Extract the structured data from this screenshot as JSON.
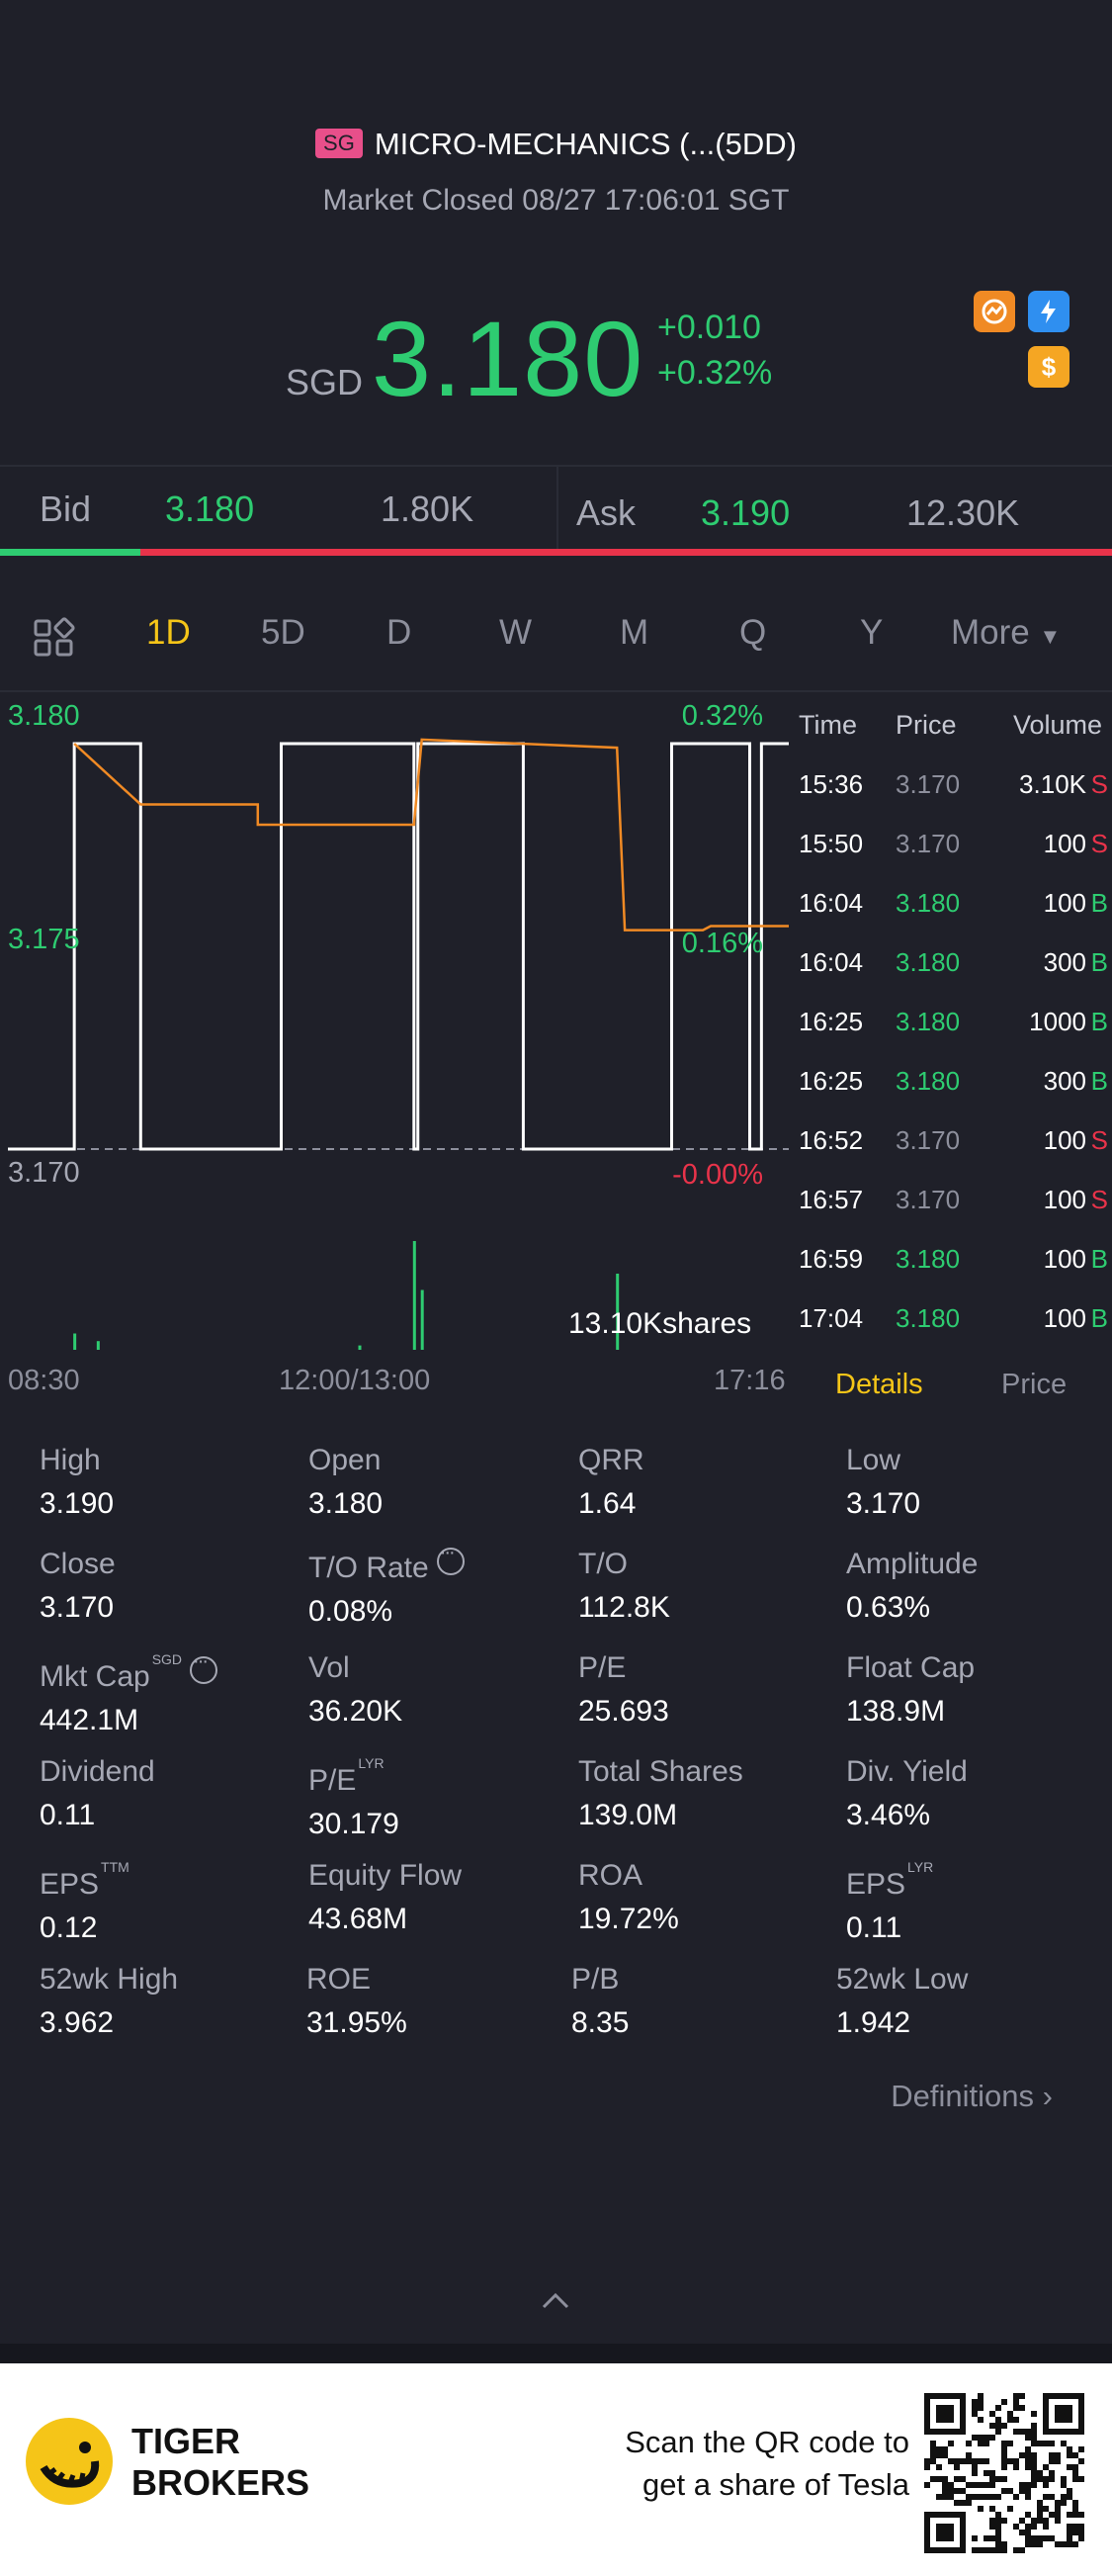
{
  "header": {
    "market_badge": "SG",
    "title": "MICRO-MECHANICS (...(5DD)",
    "status": "Market Closed 08/27 17:06:01 SGT",
    "currency": "SGD",
    "price": "3.180",
    "change": "+0.010",
    "change_pct": "+0.32%",
    "badge_lightning": "1",
    "badge_dollar": "$"
  },
  "quote": {
    "bid_label": "Bid",
    "bid_price": "3.180",
    "bid_qty": "1.80K",
    "ask_label": "Ask",
    "ask_price": "3.190",
    "ask_qty": "12.30K"
  },
  "tabs": [
    "1D",
    "5D",
    "D",
    "W",
    "M",
    "Q",
    "Y"
  ],
  "tabs_more": "More",
  "chart_data": {
    "type": "line",
    "title": "",
    "y_labels": [
      "3.180",
      "3.175",
      "3.170"
    ],
    "pct_labels": [
      "0.32%",
      "0.16%",
      "-0.00%"
    ],
    "x_labels": [
      "08:30",
      "12:00/13:00",
      "17:16"
    ],
    "ylim": [
      3.17,
      3.18
    ],
    "volume_label": "13.10Kshares",
    "series": [
      {
        "name": "price",
        "x": [
          0,
          0.085,
          0.17,
          0.35,
          0.52,
          0.525,
          0.66,
          0.85,
          0.95,
          0.965,
          1.0
        ],
        "values": [
          3.17,
          3.18,
          3.17,
          3.18,
          3.17,
          3.18,
          3.17,
          3.18,
          3.17,
          3.18,
          3.18
        ]
      },
      {
        "name": "average",
        "x": [
          0.085,
          0.17,
          0.32,
          0.32,
          0.52,
          0.53,
          0.78,
          0.79,
          0.89,
          0.9,
          1.0
        ],
        "values": [
          3.18,
          3.1785,
          3.1785,
          3.178,
          3.178,
          3.1801,
          3.1799,
          3.1754,
          3.1754,
          3.1755,
          3.1755
        ]
      }
    ],
    "volume_bars": [
      {
        "x": 0.085,
        "v": 0.15
      },
      {
        "x": 0.115,
        "v": 0.08
      },
      {
        "x": 0.52,
        "v": 1.0
      },
      {
        "x": 0.53,
        "v": 0.55
      },
      {
        "x": 0.78,
        "v": 0.7
      },
      {
        "x": 0.45,
        "v": 0.04
      }
    ]
  },
  "ticker": {
    "headers": {
      "time": "Time",
      "price": "Price",
      "volume": "Volume"
    },
    "rows": [
      {
        "time": "15:36",
        "price": "3.170",
        "vol": "3.10K",
        "side": "S"
      },
      {
        "time": "15:50",
        "price": "3.170",
        "vol": "100",
        "side": "S"
      },
      {
        "time": "16:04",
        "price": "3.180",
        "vol": "100",
        "side": "B"
      },
      {
        "time": "16:04",
        "price": "3.180",
        "vol": "300",
        "side": "B"
      },
      {
        "time": "16:25",
        "price": "3.180",
        "vol": "1000",
        "side": "B"
      },
      {
        "time": "16:25",
        "price": "3.180",
        "vol": "300",
        "side": "B"
      },
      {
        "time": "16:52",
        "price": "3.170",
        "vol": "100",
        "side": "S"
      },
      {
        "time": "16:57",
        "price": "3.170",
        "vol": "100",
        "side": "S"
      },
      {
        "time": "16:59",
        "price": "3.180",
        "vol": "100",
        "side": "B"
      },
      {
        "time": "17:04",
        "price": "3.180",
        "vol": "100",
        "side": "B"
      }
    ],
    "tab_details": "Details",
    "tab_price": "Price"
  },
  "stats": {
    "high_k": "High",
    "high_v": "3.190",
    "open_k": "Open",
    "open_v": "3.180",
    "qrr_k": "QRR",
    "qrr_v": "1.64",
    "low_k": "Low",
    "low_v": "3.170",
    "close_k": "Close",
    "close_v": "3.170",
    "to_rate_k": "T/O Rate",
    "to_rate_v": "0.08%",
    "to_k": "T/O",
    "to_v": "112.8K",
    "amp_k": "Amplitude",
    "amp_v": "0.63%",
    "mktcap_k": "Mkt Cap",
    "mktcap_sup": "SGD",
    "mktcap_v": "442.1M",
    "vol_k": "Vol",
    "vol_v": "36.20K",
    "pe_k": "P/E",
    "pe_v": "25.693",
    "float_k": "Float Cap",
    "float_v": "138.9M",
    "div_k": "Dividend",
    "div_v": "0.11",
    "pelyr_k": "P/E",
    "pelyr_sup": "LYR",
    "pelyr_v": "30.179",
    "shares_k": "Total Shares",
    "shares_v": "139.0M",
    "yield_k": "Div. Yield",
    "yield_v": "3.46%",
    "eps_k": "EPS",
    "eps_sup": "TTM",
    "eps_v": "0.12",
    "eqflow_k": "Equity Flow",
    "eqflow_v": "43.68M",
    "roa_k": "ROA",
    "roa_v": "19.72%",
    "epslyr_k": "EPS",
    "epslyr_sup": "LYR",
    "epslyr_v": "0.11",
    "h52_k": "52wk High",
    "h52_v": "3.962",
    "roe_k": "ROE",
    "roe_v": "31.95%",
    "pb_k": "P/B",
    "pb_v": "8.35",
    "l52_k": "52wk Low",
    "l52_v": "1.942"
  },
  "definitions": "Definitions",
  "footer": {
    "brand_line1": "TIGER",
    "brand_line2": "BROKERS",
    "promo_line1": "Scan the QR code to",
    "promo_line2": "get a share of Tesla"
  },
  "colors": {
    "green": "#2ecc71",
    "red": "#e8334a",
    "accent": "#f5c518",
    "bg": "#1f2029"
  }
}
